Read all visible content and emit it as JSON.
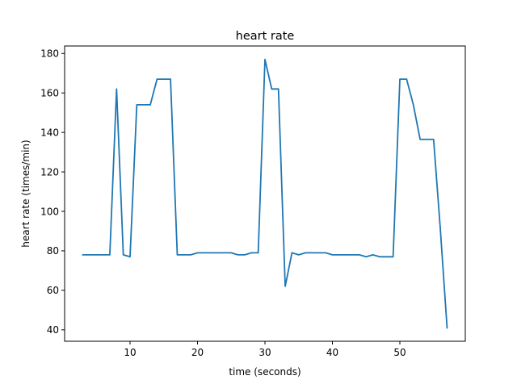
{
  "chart_data": {
    "type": "line",
    "title": "heart rate",
    "xlabel": "time (seconds)",
    "ylabel": "heart rate (times/min)",
    "xlim": [
      0.3,
      59.7
    ],
    "ylim": [
      34.2,
      183.8
    ],
    "xticks": [
      10,
      20,
      30,
      40,
      50
    ],
    "yticks": [
      40,
      60,
      80,
      100,
      120,
      140,
      160,
      180
    ],
    "grid": false,
    "legend": "none",
    "series": [
      {
        "color": "#1f77b4",
        "x": [
          3,
          4,
          5,
          6,
          7,
          8,
          9,
          10,
          11,
          12,
          13,
          14,
          15,
          16,
          17,
          18,
          19,
          20,
          21,
          22,
          23,
          24,
          25,
          26,
          27,
          28,
          29,
          30,
          31,
          32,
          33,
          34,
          35,
          36,
          37,
          38,
          39,
          40,
          41,
          42,
          43,
          44,
          45,
          46,
          47,
          48,
          49,
          50,
          51,
          52,
          53,
          54,
          55,
          56,
          57
        ],
        "y": [
          78,
          78,
          78,
          78,
          78,
          162,
          78,
          77,
          154,
          154,
          154,
          167,
          167,
          167,
          78,
          78,
          78,
          79,
          79,
          79,
          79,
          79,
          79,
          78,
          78,
          79,
          79,
          177,
          162,
          162,
          62,
          79,
          78,
          79,
          79,
          79,
          79,
          78,
          78,
          78,
          78,
          78,
          77,
          78,
          77,
          77,
          77,
          167,
          167,
          154,
          136.5,
          136.5,
          136.5,
          91,
          41
        ]
      }
    ]
  }
}
